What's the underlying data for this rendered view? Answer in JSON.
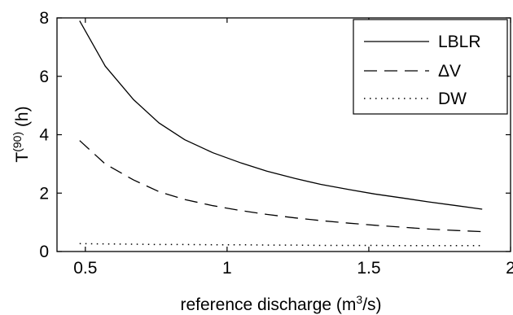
{
  "chart_data": {
    "type": "line",
    "xlabel": {
      "base": "reference discharge (m",
      "sup": "3",
      "tail": "/s)"
    },
    "ylabel": {
      "base": "T",
      "sup": "(90)",
      "tail": " (h)"
    },
    "xlim": [
      0.4,
      2.0
    ],
    "ylim": [
      0,
      8
    ],
    "xticks": [
      0.5,
      1,
      1.5,
      2
    ],
    "xtick_labels": [
      "0.5",
      "1",
      "1.5",
      "2"
    ],
    "yticks": [
      0,
      2,
      4,
      6,
      8
    ],
    "ytick_labels": [
      "0",
      "2",
      "4",
      "6",
      "8"
    ],
    "grid": false,
    "legend_position": "top-right",
    "series": [
      {
        "name": "LBLR",
        "style": "solid",
        "x": [
          0.48,
          0.57,
          0.67,
          0.76,
          0.85,
          0.95,
          1.05,
          1.14,
          1.24,
          1.33,
          1.43,
          1.52,
          1.62,
          1.71,
          1.81,
          1.9
        ],
        "y": [
          7.9,
          6.35,
          5.2,
          4.4,
          3.83,
          3.38,
          3.03,
          2.75,
          2.5,
          2.3,
          2.12,
          1.97,
          1.83,
          1.7,
          1.57,
          1.45
        ]
      },
      {
        "name": "ΔV",
        "style": "dashed",
        "x": [
          0.48,
          0.57,
          0.67,
          0.76,
          0.85,
          0.95,
          1.05,
          1.14,
          1.24,
          1.33,
          1.43,
          1.52,
          1.62,
          1.71,
          1.81,
          1.9
        ],
        "y": [
          3.8,
          3.0,
          2.45,
          2.05,
          1.78,
          1.57,
          1.4,
          1.27,
          1.15,
          1.06,
          0.97,
          0.9,
          0.83,
          0.77,
          0.72,
          0.68
        ]
      },
      {
        "name": "DW",
        "style": "dotted",
        "x": [
          0.48,
          0.57,
          0.67,
          0.76,
          0.85,
          0.95,
          1.05,
          1.14,
          1.24,
          1.33,
          1.43,
          1.52,
          1.62,
          1.71,
          1.81,
          1.9
        ],
        "y": [
          0.27,
          0.26,
          0.25,
          0.24,
          0.24,
          0.23,
          0.23,
          0.22,
          0.22,
          0.21,
          0.21,
          0.21,
          0.2,
          0.2,
          0.2,
          0.2
        ]
      }
    ]
  }
}
